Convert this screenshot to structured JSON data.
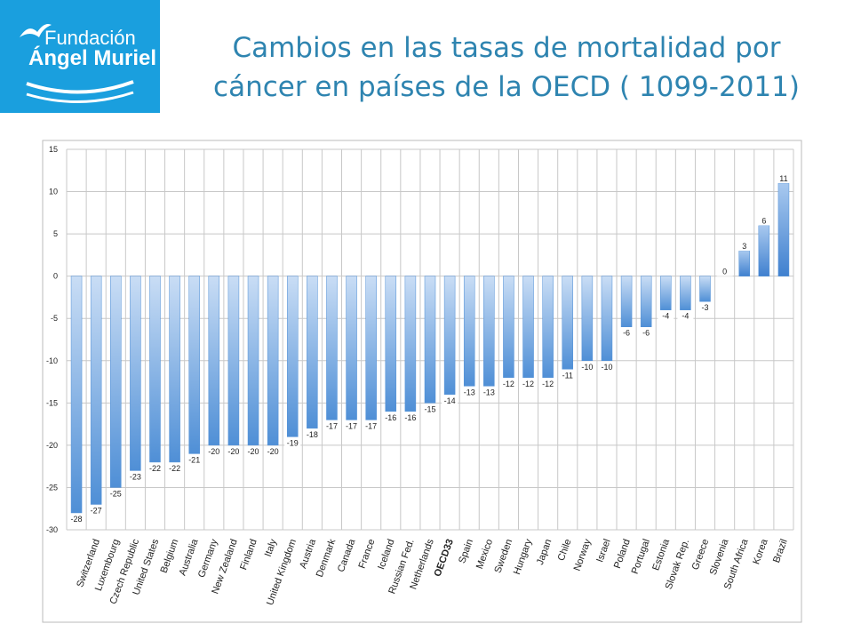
{
  "logo": {
    "line1": "Fundación",
    "line2": "Ángel Muriel"
  },
  "chart_data": {
    "type": "bar",
    "title": "Cambios en las tasas de mortalidad por cáncer en países de la OECD ( 1099-2011)",
    "categories": [
      null,
      "Switzerland",
      "Luxembourg",
      "Czech Republic",
      "United States",
      "Belgium",
      "Australia",
      "Germany",
      "New Zealand",
      "Finland",
      "Italy",
      "United Kingdom",
      "Austria",
      "Denmark",
      "Canada",
      "France",
      "Iceland",
      "Russian Fed.",
      "Netherlands",
      "OECD33",
      "Spain",
      "Mexico",
      "Sweden",
      "Hungary",
      "Japan",
      "Chile",
      "Norway",
      "Israel",
      "Poland",
      "Portugal",
      "Estonia",
      "Slovak Rep.",
      "Greece",
      "Slovenia",
      "South Africa",
      "Korea",
      "Brazil"
    ],
    "values": [
      -28,
      -27,
      -25,
      -23,
      -22,
      -22,
      -21,
      -20,
      -20,
      -20,
      -20,
      -19,
      -18,
      -17,
      -17,
      -17,
      -16,
      -16,
      -15,
      -14,
      -13,
      -13,
      -12,
      -12,
      -12,
      -11,
      -10,
      -10,
      -6,
      -6,
      -4,
      -4,
      -3,
      0,
      3,
      6,
      11
    ],
    "bold_categories": [
      19
    ],
    "color": "#4f8fd6",
    "ylim": [
      -30,
      15
    ],
    "yticks": [
      -30,
      -25,
      -20,
      -15,
      -10,
      -5,
      0,
      5,
      10,
      15
    ],
    "grid": true
  }
}
